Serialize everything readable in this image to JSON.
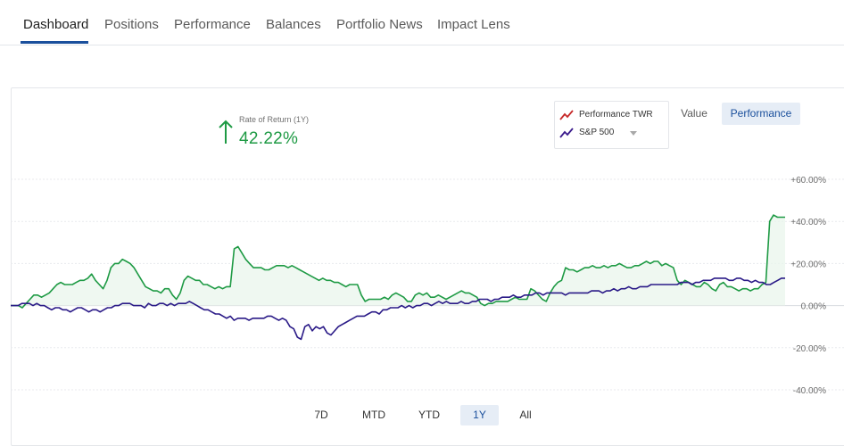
{
  "nav": {
    "tabs": [
      {
        "label": "Dashboard",
        "active": true
      },
      {
        "label": "Positions"
      },
      {
        "label": "Performance"
      },
      {
        "label": "Balances"
      },
      {
        "label": "Portfolio News"
      },
      {
        "label": "Impact Lens"
      }
    ]
  },
  "summary": {
    "rate_label": "Rate of Return (1Y)",
    "rate_value": "42.22%",
    "direction_icon": "arrow-up-icon"
  },
  "legend": {
    "items": [
      {
        "label": "Performance TWR",
        "icon": "line-chart-icon",
        "color": "#c62828"
      },
      {
        "label": "S&P 500",
        "icon": "line-chart-icon",
        "color": "#3a1a8c"
      }
    ]
  },
  "view_toggle": {
    "value_label": "Value",
    "performance_label": "Performance",
    "selected": "Performance"
  },
  "ranges": {
    "items": [
      "7D",
      "MTD",
      "YTD",
      "1Y",
      "All"
    ],
    "selected": "1Y"
  },
  "colors": {
    "portfolio": "#1e9a44",
    "benchmark": "#2a1a87",
    "accent": "#1a4f9c",
    "fill": "#e9f6ec"
  },
  "chart_data": {
    "type": "line",
    "y_axis": {
      "ticks": [
        "+60.00%",
        "+40.00%",
        "+20.00%",
        "0.00%",
        "-20.00%",
        "-40.00%"
      ],
      "ylim": [
        -40,
        60
      ],
      "grid": true,
      "position": "right"
    },
    "series": [
      {
        "name": "Performance TWR",
        "values": [
          0,
          0,
          0,
          -1,
          1,
          3,
          5,
          5,
          4,
          5,
          6,
          8,
          10,
          11,
          10,
          10,
          10,
          11,
          12,
          12,
          13,
          15,
          12,
          10,
          8,
          12,
          18,
          20,
          20,
          22,
          21,
          20,
          18,
          15,
          12,
          9,
          8,
          7,
          7,
          6,
          8,
          8,
          5,
          3,
          6,
          12,
          14,
          13,
          12,
          12,
          10,
          10,
          9,
          8,
          9,
          8,
          9,
          9,
          27,
          28,
          25,
          22,
          20,
          18,
          18,
          18,
          17,
          17,
          18,
          19,
          19,
          19,
          18,
          19,
          18,
          17,
          16,
          15,
          14,
          13,
          12,
          13,
          12,
          12,
          11,
          11,
          10,
          9,
          10,
          10,
          10,
          5,
          2,
          3,
          3,
          3,
          3,
          4,
          3,
          5,
          6,
          5,
          4,
          2,
          2,
          5,
          6,
          5,
          6,
          4,
          4,
          5,
          4,
          3,
          4,
          5,
          6,
          7,
          6,
          6,
          5,
          4,
          1,
          0,
          1,
          1,
          2,
          2,
          2,
          2,
          3,
          4,
          3,
          3,
          3,
          8,
          7,
          5,
          3,
          2,
          6,
          9,
          11,
          12,
          18,
          17,
          17,
          16,
          17,
          18,
          18,
          19,
          18,
          18,
          19,
          18,
          19,
          19,
          20,
          19,
          18,
          18,
          19,
          19,
          20,
          21,
          20,
          21,
          21,
          19,
          20,
          19,
          18,
          12,
          10,
          12,
          11,
          10,
          9,
          9,
          11,
          10,
          8,
          7,
          10,
          11,
          9,
          9,
          8,
          7,
          8,
          8,
          7,
          8,
          8,
          10,
          11,
          40,
          43,
          42,
          42,
          42
        ],
        "color": "#1e9a44"
      },
      {
        "name": "S&P 500",
        "values": [
          0,
          0,
          0,
          1,
          1,
          1,
          0,
          1,
          0,
          0,
          -1,
          -2,
          -1,
          -1,
          -2,
          -2,
          -3,
          -2,
          -1,
          -1,
          -2,
          -3,
          -2,
          -2,
          -3,
          -2,
          -1,
          -1,
          0,
          0,
          1,
          1,
          1,
          0,
          0,
          0,
          -1,
          1,
          0,
          0,
          1,
          1,
          0,
          1,
          0,
          1,
          1,
          1,
          2,
          1,
          0,
          -1,
          -2,
          -2,
          -3,
          -4,
          -4,
          -5,
          -6,
          -5,
          -7,
          -6,
          -6,
          -6,
          -7,
          -6,
          -6,
          -6,
          -6,
          -5,
          -5,
          -6,
          -7,
          -6,
          -7,
          -10,
          -11,
          -15,
          -16,
          -10,
          -9,
          -12,
          -10,
          -11,
          -10,
          -13,
          -14,
          -12,
          -10,
          -9,
          -8,
          -7,
          -6,
          -5,
          -5,
          -5,
          -4,
          -3,
          -3,
          -4,
          -2,
          -2,
          -1,
          -1,
          -1,
          0,
          -1,
          0,
          -1,
          0,
          0,
          1,
          1,
          0,
          1,
          2,
          1,
          2,
          1,
          1,
          1,
          2,
          1,
          1,
          2,
          2,
          3,
          3,
          3,
          2,
          3,
          3,
          4,
          4,
          4,
          5,
          4,
          4,
          5,
          5,
          5,
          6,
          6,
          5,
          6,
          6,
          6,
          6,
          6,
          5,
          6,
          6,
          6,
          6,
          6,
          6,
          7,
          7,
          7,
          6,
          7,
          7,
          8,
          7,
          8,
          8,
          9,
          8,
          8,
          9,
          9,
          9,
          10,
          10,
          10,
          10,
          10,
          10,
          10,
          10,
          11,
          11,
          11,
          10,
          11,
          11,
          12,
          12,
          12,
          13,
          13,
          13,
          13,
          12,
          12,
          13,
          13,
          12,
          12,
          11,
          12,
          11,
          11,
          10,
          10,
          11,
          12,
          13,
          13
        ],
        "color": "#2a1a87"
      }
    ]
  }
}
